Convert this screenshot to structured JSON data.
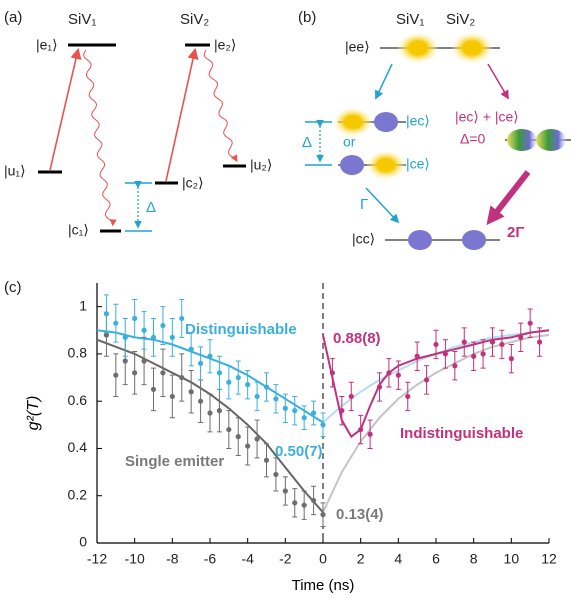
{
  "panel_a": {
    "label": "(a)",
    "siv1": "SiV₁",
    "siv2": "SiV₂",
    "e1": "|e₁⟩",
    "u1": "|u₁⟩",
    "c1": "|c₁⟩",
    "e2": "|e₂⟩",
    "c2": "|c₂⟩",
    "u2": "|u₂⟩",
    "delta": "Δ"
  },
  "panel_b": {
    "label": "(b)",
    "siv1": "SiV₁",
    "siv2": "SiV₂",
    "ee": "|ee⟩",
    "ec": "|ec⟩",
    "or": "or",
    "ce": "|ce⟩",
    "delta": "Δ",
    "gamma": "Γ",
    "superposition": "|ec⟩ + |ce⟩",
    "delta_zero": "Δ=0",
    "two_gamma": "2Γ",
    "cc": "|cc⟩"
  },
  "chart_data": {
    "type": "scatter",
    "panel_label": "(c)",
    "x_label": "Time (ns)",
    "y_label": "g²(T)",
    "xlim": [
      -12,
      12
    ],
    "ylim": [
      0,
      1.1
    ],
    "xticks": [
      -12,
      -10,
      -8,
      -6,
      -4,
      -2,
      0,
      2,
      4,
      6,
      8,
      10,
      12
    ],
    "yticks": [
      0,
      0.2,
      0.4,
      0.6,
      0.8,
      1
    ],
    "series": [
      {
        "name": "Single emitter",
        "color": "#6e6e6e",
        "x": [
          -11.5,
          -11,
          -10.5,
          -10,
          -9.5,
          -9,
          -8.5,
          -8,
          -7.5,
          -7,
          -6.5,
          -6,
          -5.5,
          -5,
          -4.5,
          -4,
          -3.5,
          -3,
          -2.5,
          -2,
          -1.5,
          -1,
          -0.5,
          0
        ],
        "values": [
          0.88,
          0.71,
          0.77,
          0.72,
          0.77,
          0.65,
          0.72,
          0.62,
          0.7,
          0.64,
          0.6,
          0.55,
          0.56,
          0.48,
          0.45,
          0.41,
          0.44,
          0.35,
          0.29,
          0.22,
          0.17,
          0.16,
          0.18,
          0.12
        ],
        "errors": [
          0.09,
          0.09,
          0.1,
          0.09,
          0.1,
          0.09,
          0.1,
          0.09,
          0.1,
          0.09,
          0.09,
          0.08,
          0.09,
          0.08,
          0.08,
          0.08,
          0.08,
          0.07,
          0.07,
          0.06,
          0.06,
          0.06,
          0.06,
          0.05
        ]
      },
      {
        "name": "Distinguishable",
        "color": "#3bb0df",
        "x": [
          -11.5,
          -11,
          -10.5,
          -10,
          -9.5,
          -9,
          -8.5,
          -8,
          -7.5,
          -7,
          -6.5,
          -6,
          -5.5,
          -5,
          -4.5,
          -4,
          -3.5,
          -3,
          -2.5,
          -2,
          -1.5,
          -1,
          -0.5,
          0
        ],
        "values": [
          0.97,
          0.93,
          0.87,
          0.95,
          0.9,
          0.87,
          0.92,
          0.87,
          0.95,
          0.82,
          0.76,
          0.79,
          0.72,
          0.68,
          0.7,
          0.67,
          0.62,
          0.66,
          0.61,
          0.57,
          0.56,
          0.53,
          0.55,
          0.5
        ],
        "errors": [
          0.08,
          0.08,
          0.08,
          0.08,
          0.08,
          0.08,
          0.08,
          0.08,
          0.08,
          0.07,
          0.07,
          0.07,
          0.07,
          0.07,
          0.07,
          0.06,
          0.06,
          0.06,
          0.06,
          0.06,
          0.06,
          0.05,
          0.05,
          0.05
        ]
      },
      {
        "name": "Indistinguishable",
        "color": "#c2317d",
        "x": [
          0.5,
          1,
          1.5,
          2,
          2.5,
          3,
          3.5,
          4,
          4.5,
          5,
          5.5,
          6,
          6.5,
          7,
          7.5,
          8,
          8.5,
          9,
          9.5,
          10,
          10.5,
          11,
          11.5
        ],
        "values": [
          0.72,
          0.56,
          0.62,
          0.48,
          0.46,
          0.66,
          0.72,
          0.71,
          0.62,
          0.79,
          0.69,
          0.84,
          0.8,
          0.75,
          0.85,
          0.79,
          0.8,
          0.85,
          0.84,
          0.78,
          0.87,
          0.93,
          0.85
        ],
        "errors": [
          0.06,
          0.06,
          0.06,
          0.06,
          0.06,
          0.06,
          0.06,
          0.06,
          0.06,
          0.06,
          0.06,
          0.06,
          0.06,
          0.06,
          0.06,
          0.06,
          0.06,
          0.06,
          0.06,
          0.06,
          0.06,
          0.06,
          0.06
        ]
      }
    ],
    "curves": [
      {
        "color": "#666666",
        "x": [
          -12,
          -11,
          -10,
          -9,
          -8,
          -7,
          -6,
          -5,
          -4,
          -3,
          -2,
          -1,
          0
        ],
        "values": [
          0.86,
          0.83,
          0.8,
          0.76,
          0.72,
          0.68,
          0.63,
          0.57,
          0.5,
          0.42,
          0.32,
          0.22,
          0.13
        ]
      },
      {
        "color": "#c4c4c4",
        "x": [
          0,
          1,
          2,
          3,
          4,
          5,
          6,
          7,
          8,
          9,
          10,
          11,
          12
        ],
        "values": [
          0.13,
          0.3,
          0.43,
          0.53,
          0.61,
          0.67,
          0.72,
          0.76,
          0.8,
          0.83,
          0.85,
          0.87,
          0.88
        ]
      },
      {
        "color": "#3bb0df",
        "x": [
          -12,
          -11,
          -10,
          -9,
          -8,
          -7,
          -6,
          -5,
          -4,
          -3,
          -2,
          -1,
          0
        ],
        "values": [
          0.9,
          0.89,
          0.87,
          0.86,
          0.84,
          0.81,
          0.78,
          0.75,
          0.71,
          0.66,
          0.61,
          0.56,
          0.51
        ]
      },
      {
        "color": "#b3def2",
        "x": [
          0,
          1,
          2,
          3,
          4,
          5,
          6,
          7,
          8,
          9,
          10,
          11,
          12
        ],
        "values": [
          0.51,
          0.58,
          0.64,
          0.69,
          0.73,
          0.77,
          0.8,
          0.83,
          0.85,
          0.87,
          0.88,
          0.89,
          0.9
        ]
      },
      {
        "color": "#c2317d",
        "x": [
          0,
          0.5,
          1,
          1.5,
          2,
          2.5,
          3,
          3.5,
          4,
          5,
          6,
          7,
          8,
          9,
          10,
          11,
          12
        ],
        "values": [
          0.88,
          0.7,
          0.52,
          0.45,
          0.48,
          0.58,
          0.67,
          0.72,
          0.75,
          0.78,
          0.8,
          0.82,
          0.84,
          0.86,
          0.87,
          0.89,
          0.9
        ]
      }
    ],
    "annotations": [
      {
        "text": "Distinguishable",
        "color": "#3bb0df"
      },
      {
        "text": "Single emitter",
        "color": "#7a7a7a"
      },
      {
        "text": "Indistinguishable",
        "color": "#c2317d"
      },
      {
        "text": "0.88(8)",
        "color": "#c2317d"
      },
      {
        "text": "0.50(7)",
        "color": "#3bb0df"
      },
      {
        "text": "0.13(4)",
        "color": "#7a7a7a"
      }
    ]
  }
}
